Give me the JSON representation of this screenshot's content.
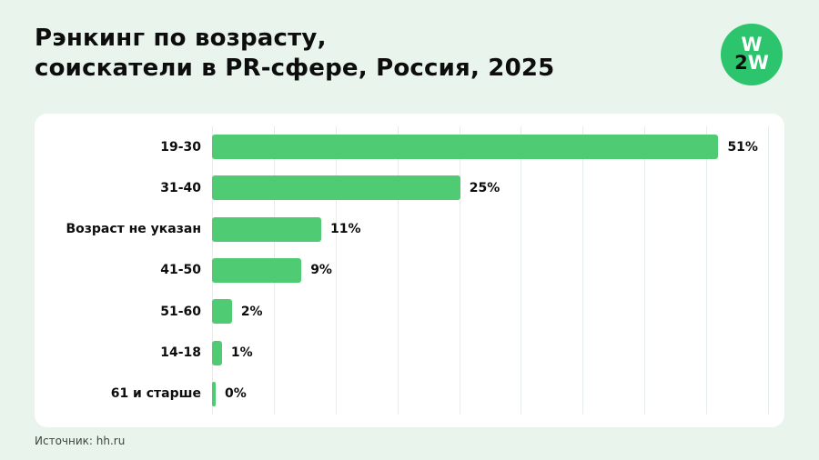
{
  "header": {
    "title_line1": "Рэнкинг по возрасту,",
    "title_line2": "соискатели в PR-сфере, Россия, 2025",
    "logo": {
      "line1": "W",
      "line2_dark": "2",
      "line2_light": "W"
    }
  },
  "chart_data": {
    "type": "bar",
    "orientation": "horizontal",
    "title": "Рэнкинг по возрасту, соискатели в PR-сфере, Россия, 2025",
    "categories": [
      "19-30",
      "31-40",
      "Возраст не указан",
      "41-50",
      "51-60",
      "14-18",
      "61 и старше"
    ],
    "values": [
      51,
      25,
      11,
      9,
      2,
      1,
      0
    ],
    "value_suffix": "%",
    "xlim": [
      0,
      56
    ],
    "grid": true,
    "legend": false,
    "bar_color": "#4ecb73",
    "gridline_count": 10
  },
  "colors": {
    "page_background": "#e9f5ec",
    "panel_background": "#ffffff",
    "bar": "#4ecb73",
    "logo_background": "#2cc56d",
    "text": "#0d0d0d"
  },
  "footer": {
    "source": "Источник: hh.ru"
  }
}
